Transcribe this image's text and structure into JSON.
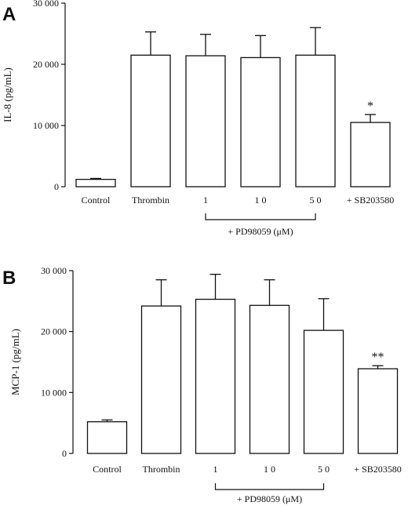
{
  "chart_data": [
    {
      "type": "bar",
      "panel": "A",
      "ylabel": "IL-8  (pg/mL)",
      "ylim": [
        0,
        30000
      ],
      "yticks": [
        0,
        10000,
        20000,
        30000
      ],
      "ytick_labels": [
        "0",
        "10 000",
        "20 000",
        "30 000"
      ],
      "categories": [
        "Control",
        "Thrombin",
        "1",
        "1 0",
        "5 0",
        "+  SB203580"
      ],
      "values": [
        1200,
        21500,
        21400,
        21100,
        21500,
        10500
      ],
      "errors": [
        150,
        3800,
        3500,
        3600,
        4500,
        1300
      ],
      "significance": [
        "",
        "",
        "",
        "",
        "",
        "*"
      ],
      "bracket_label": "+ PD98059 (μM)",
      "bracket_span": [
        2,
        4
      ]
    },
    {
      "type": "bar",
      "panel": "B",
      "ylabel": "MCP-1  (pg/mL)",
      "ylim": [
        0,
        30000
      ],
      "yticks": [
        0,
        10000,
        20000,
        30000
      ],
      "ytick_labels": [
        "0",
        "10 000",
        "20 000",
        "30 000"
      ],
      "categories": [
        "Control",
        "Thrombin",
        "1",
        "1 0",
        "5 0",
        "+  SB203580"
      ],
      "values": [
        5200,
        24200,
        25300,
        24300,
        20200,
        13900
      ],
      "errors": [
        300,
        4300,
        4100,
        4200,
        5200,
        500
      ],
      "significance": [
        "",
        "",
        "",
        "",
        "",
        "**"
      ],
      "bracket_label": "+ PD98059 (μM)",
      "bracket_span": [
        2,
        4
      ]
    }
  ]
}
